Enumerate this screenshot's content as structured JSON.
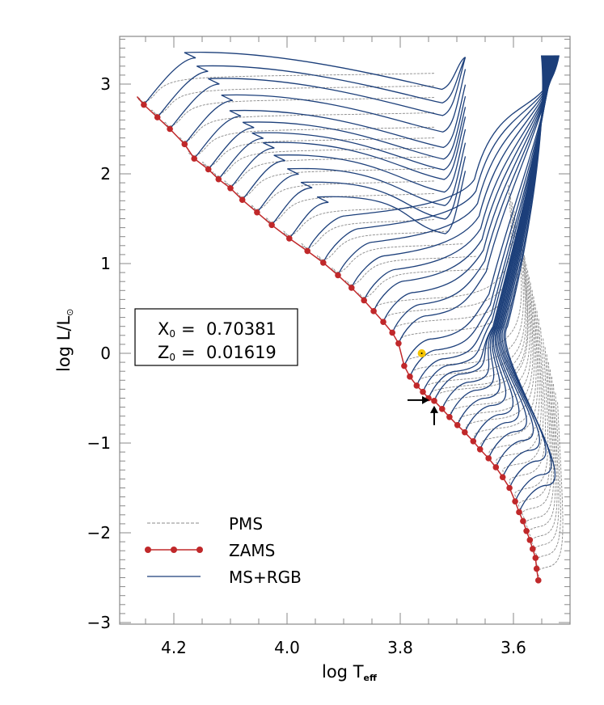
{
  "chart_data": {
    "type": "line",
    "xlabel": "log T",
    "xlabel_sub": "eff",
    "ylabel": "log L/L",
    "ylabel_sub": "⊙",
    "xlim": [
      4.296,
      3.5
    ],
    "ylim": [
      -3.05,
      3.53
    ],
    "x_reversed": true,
    "grid": false,
    "x_ticks": [
      "4.2",
      "4.0",
      "3.8",
      "3.6"
    ],
    "x_tick_values": [
      4.2,
      4.0,
      3.8,
      3.6
    ],
    "y_ticks": [
      "3",
      "2",
      "1",
      "0",
      "−1",
      "−2",
      "−3"
    ],
    "y_tick_values": [
      3,
      2,
      1,
      0,
      -1,
      -2,
      -3
    ],
    "annotation": {
      "x0_label": "X",
      "x0_sub": "0",
      "x0_value": "=  0.70381",
      "z0_label": "Z",
      "z0_sub": "0",
      "z0_value": "=  0.01619"
    },
    "sun_marker": {
      "x": 3.762,
      "y": 0.0,
      "color": "#f5c400"
    },
    "arrow_target": {
      "x": 3.74,
      "y": -0.53
    },
    "legend_placement": "bottom-left",
    "series": [
      {
        "name": "PMS",
        "style": "dashed",
        "color": "#888888"
      },
      {
        "name": "ZAMS",
        "style": "line+markers",
        "color": "#c0282a",
        "x": [
          4.253,
          4.229,
          4.207,
          4.181,
          4.164,
          4.139,
          4.121,
          4.1,
          4.079,
          4.053,
          4.027,
          3.996,
          3.964,
          3.936,
          3.91,
          3.886,
          3.864,
          3.847,
          3.83,
          3.814,
          3.803,
          3.793,
          3.783,
          3.771,
          3.76,
          3.75,
          3.74,
          3.726,
          3.713,
          3.699,
          3.686,
          3.671,
          3.659,
          3.644,
          3.631,
          3.619,
          3.607,
          3.597,
          3.59,
          3.583,
          3.577,
          3.571,
          3.566,
          3.561,
          3.559,
          3.556
        ],
        "y": [
          2.77,
          2.63,
          2.5,
          2.33,
          2.17,
          2.05,
          1.94,
          1.84,
          1.71,
          1.57,
          1.43,
          1.28,
          1.14,
          1.01,
          0.87,
          0.73,
          0.59,
          0.47,
          0.35,
          0.23,
          0.11,
          -0.14,
          -0.26,
          -0.36,
          -0.43,
          -0.5,
          -0.53,
          -0.62,
          -0.71,
          -0.8,
          -0.88,
          -0.98,
          -1.07,
          -1.17,
          -1.27,
          -1.38,
          -1.5,
          -1.65,
          -1.77,
          -1.87,
          -1.98,
          -2.08,
          -2.18,
          -2.28,
          -2.4,
          -2.53
        ]
      },
      {
        "name": "MS+RGB",
        "style": "line",
        "color": "#1c3f7a"
      }
    ]
  }
}
